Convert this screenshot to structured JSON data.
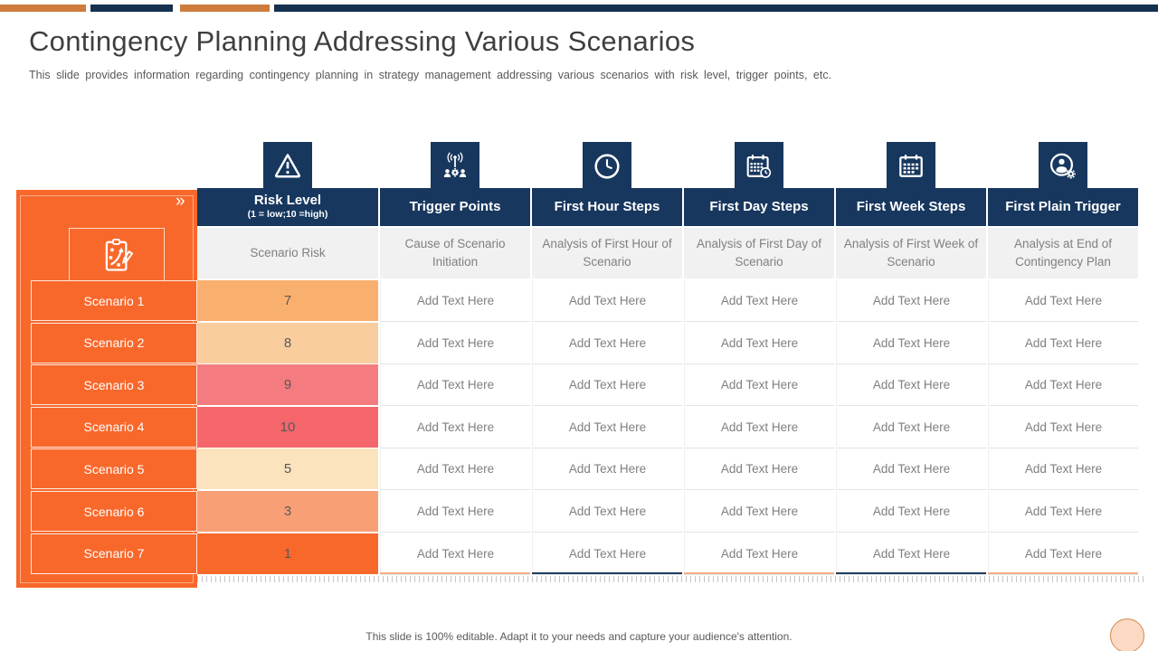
{
  "slide": {
    "title": "Contingency Planning Addressing Various Scenarios",
    "subtitle": "This slide provides  information  regarding  contingency planning  in strategy management  addressing  various  scenarios with risk level,  trigger  points,  etc.",
    "footer": "This slide is 100% editable. Adapt it to your needs and capture your audience's attention.",
    "panel_chevron": "»",
    "panel_icon": "strategy-clipboard-icon"
  },
  "colors": {
    "accent_orange": "#F8682B",
    "accent_navy": "#17375E",
    "topbar_orange": "#CE7C3D",
    "topbar_navy": "#16304E",
    "subheader_gray": "#F1F1F1",
    "text_gray": "#7F7F7F"
  },
  "table": {
    "placeholder": "Add Text Here",
    "columns": [
      {
        "label": "Risk Level",
        "sublabel": "(1 = low;10 =high)",
        "icon": "warning-triangle-icon",
        "subheader": "Scenario Risk"
      },
      {
        "label": "Trigger Points",
        "sublabel": "",
        "icon": "broadcast-people-icon",
        "subheader": "Cause of Scenario Initiation"
      },
      {
        "label": "First Hour Steps",
        "sublabel": "",
        "icon": "clock-icon",
        "subheader": "Analysis of First Hour of Scenario"
      },
      {
        "label": "First Day Steps",
        "sublabel": "",
        "icon": "calendar-clock-icon",
        "subheader": "Analysis of First Day of Scenario"
      },
      {
        "label": "First Week Steps",
        "sublabel": "",
        "icon": "calendar-icon",
        "subheader": "Analysis of First Week of Scenario"
      },
      {
        "label": "First Plain Trigger",
        "sublabel": "",
        "icon": "user-info-gear-icon",
        "subheader": "Analysis at End of Contingency Plan"
      }
    ],
    "rows": [
      {
        "label": "Scenario 1",
        "risk": "7",
        "risk_color": "#F9B06E"
      },
      {
        "label": "Scenario 2",
        "risk": "8",
        "risk_color": "#FACD9F"
      },
      {
        "label": "Scenario 3",
        "risk": "9",
        "risk_color": "#F47B7F"
      },
      {
        "label": "Scenario 4",
        "risk": "10",
        "risk_color": "#F4666B"
      },
      {
        "label": "Scenario 5",
        "risk": "5",
        "risk_color": "#FBE3BE"
      },
      {
        "label": "Scenario 6",
        "risk": "3",
        "risk_color": "#F99F76"
      },
      {
        "label": "Scenario 7",
        "risk": "1",
        "risk_color": "#F8682B"
      }
    ]
  }
}
